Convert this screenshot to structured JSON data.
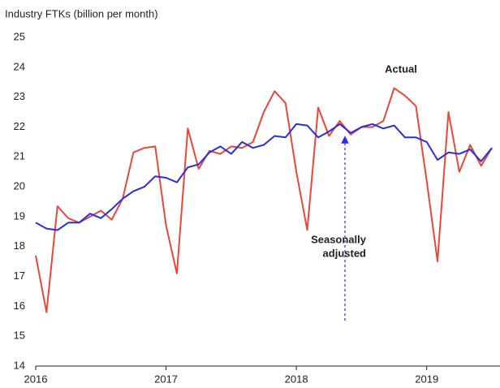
{
  "chart_data": {
    "type": "line",
    "y_label": "Industry FTKs (billion per month)",
    "x": [
      2016,
      2016.083,
      2016.167,
      2016.25,
      2016.333,
      2016.417,
      2016.5,
      2016.583,
      2016.667,
      2016.75,
      2016.833,
      2016.917,
      2017,
      2017.083,
      2017.167,
      2017.25,
      2017.333,
      2017.417,
      2017.5,
      2017.583,
      2017.667,
      2017.75,
      2017.833,
      2017.917,
      2018,
      2018.083,
      2018.167,
      2018.25,
      2018.333,
      2018.417,
      2018.5,
      2018.583,
      2018.667,
      2018.75,
      2018.833,
      2018.917,
      2019,
      2019.083,
      2019.167,
      2019.25,
      2019.333,
      2019.417,
      2019.5
    ],
    "series": [
      {
        "name": "Actual",
        "color": "#e8473a",
        "values": [
          17.7,
          15.8,
          19.35,
          18.95,
          18.8,
          19.0,
          19.2,
          18.9,
          19.6,
          21.15,
          21.3,
          21.35,
          18.7,
          17.1,
          21.95,
          20.6,
          21.2,
          21.1,
          21.35,
          21.3,
          21.5,
          22.5,
          23.2,
          22.8,
          20.5,
          18.55,
          22.65,
          21.7,
          22.2,
          21.75,
          22.0,
          22.0,
          22.2,
          23.3,
          23.05,
          22.7,
          20.2,
          17.5,
          22.5,
          20.5,
          21.4,
          20.7,
          21.3
        ]
      },
      {
        "name": "Seasonally adjusted",
        "color": "#2a2ee0",
        "values": [
          18.8,
          18.6,
          18.55,
          18.8,
          18.8,
          19.1,
          18.95,
          19.25,
          19.6,
          19.85,
          20.0,
          20.35,
          20.3,
          20.15,
          20.65,
          20.75,
          21.15,
          21.35,
          21.1,
          21.5,
          21.3,
          21.4,
          21.7,
          21.65,
          22.1,
          22.05,
          21.65,
          21.85,
          22.1,
          21.8,
          22.0,
          22.1,
          21.95,
          22.05,
          21.65,
          21.65,
          21.5,
          20.9,
          21.15,
          21.1,
          21.25,
          20.85,
          21.3
        ]
      }
    ],
    "annotations": [
      {
        "text": "Actual"
      },
      {
        "lines": [
          "Seasonally",
          "adjusted"
        ]
      }
    ],
    "xlim": [
      2016,
      2019.5
    ],
    "xticks": [
      2016,
      2017,
      2018,
      2019
    ],
    "ylim": [
      14,
      25
    ],
    "yticks": [
      14,
      15,
      16,
      17,
      18,
      19,
      20,
      21,
      22,
      23,
      24,
      25
    ],
    "grid": false
  }
}
